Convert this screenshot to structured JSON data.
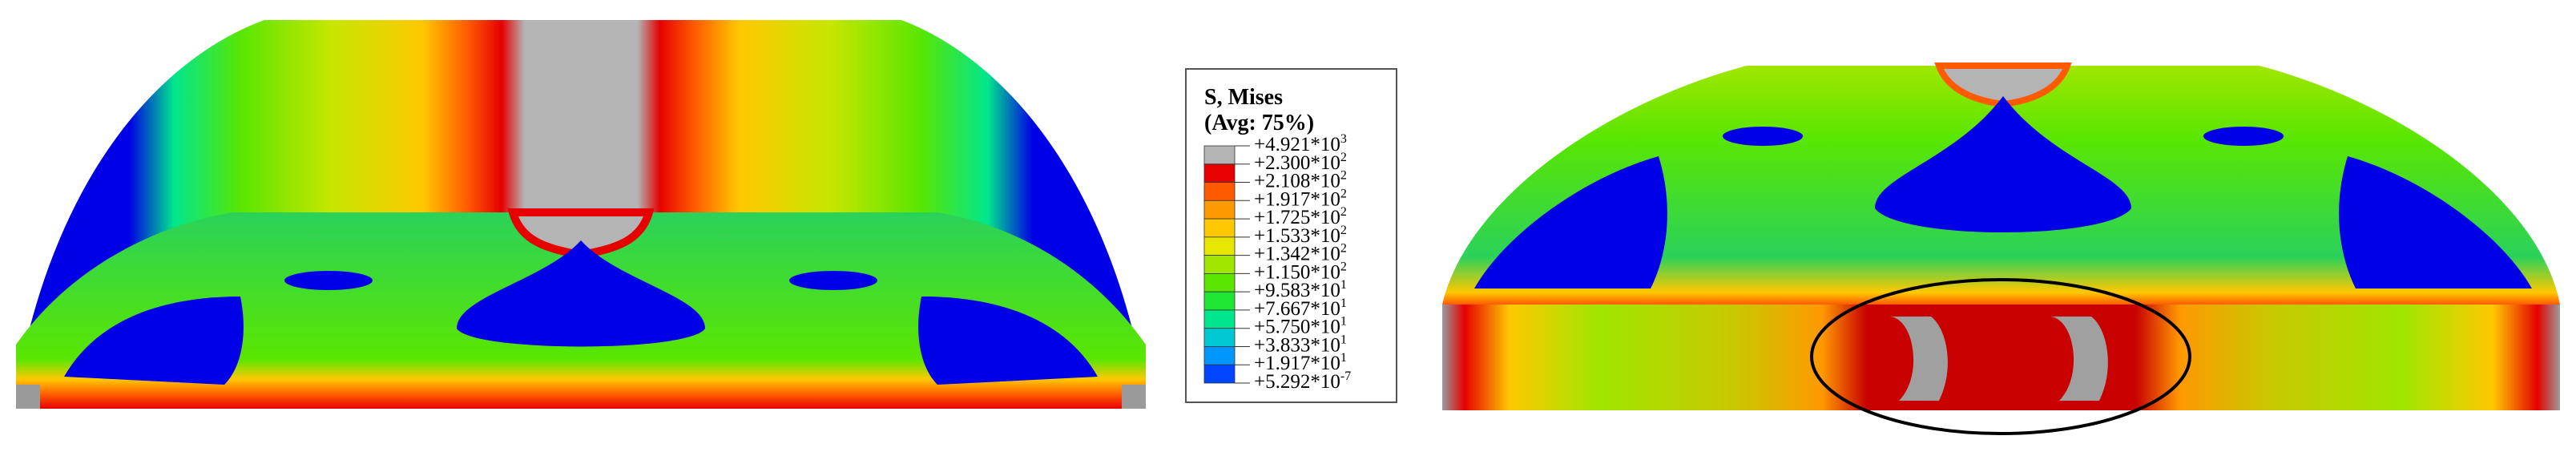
{
  "legend": {
    "title": "S, Mises",
    "subtitle": "(Avg: 75%)",
    "labels": [
      {
        "text": "+4.921*10",
        "exponent": "3"
      },
      {
        "text": "+2.300*10",
        "exponent": "2"
      },
      {
        "text": "+2.108*10",
        "exponent": "2"
      },
      {
        "text": "+1.917*10",
        "exponent": "2"
      },
      {
        "text": "+1.725*10",
        "exponent": "2"
      },
      {
        "text": "+1.533*10",
        "exponent": "2"
      },
      {
        "text": "+1.342*10",
        "exponent": "2"
      },
      {
        "text": "+1.150*10",
        "exponent": "2"
      },
      {
        "text": "+9.583*10",
        "exponent": "1"
      },
      {
        "text": "+7.667*10",
        "exponent": "1"
      },
      {
        "text": "+5.750*10",
        "exponent": "1"
      },
      {
        "text": "+3.833*10",
        "exponent": "1"
      },
      {
        "text": "+1.917*10",
        "exponent": "1"
      },
      {
        "text": "+5.292*10",
        "exponent": "-7"
      }
    ],
    "colors": [
      "#b4b4b4",
      "#e60000",
      "#ff5a00",
      "#ff9900",
      "#ffc800",
      "#e6e600",
      "#a0e600",
      "#5ae600",
      "#1ee632",
      "#00e68c",
      "#00c8d2",
      "#0096ff",
      "#0046ff",
      "#0000e6"
    ]
  }
}
